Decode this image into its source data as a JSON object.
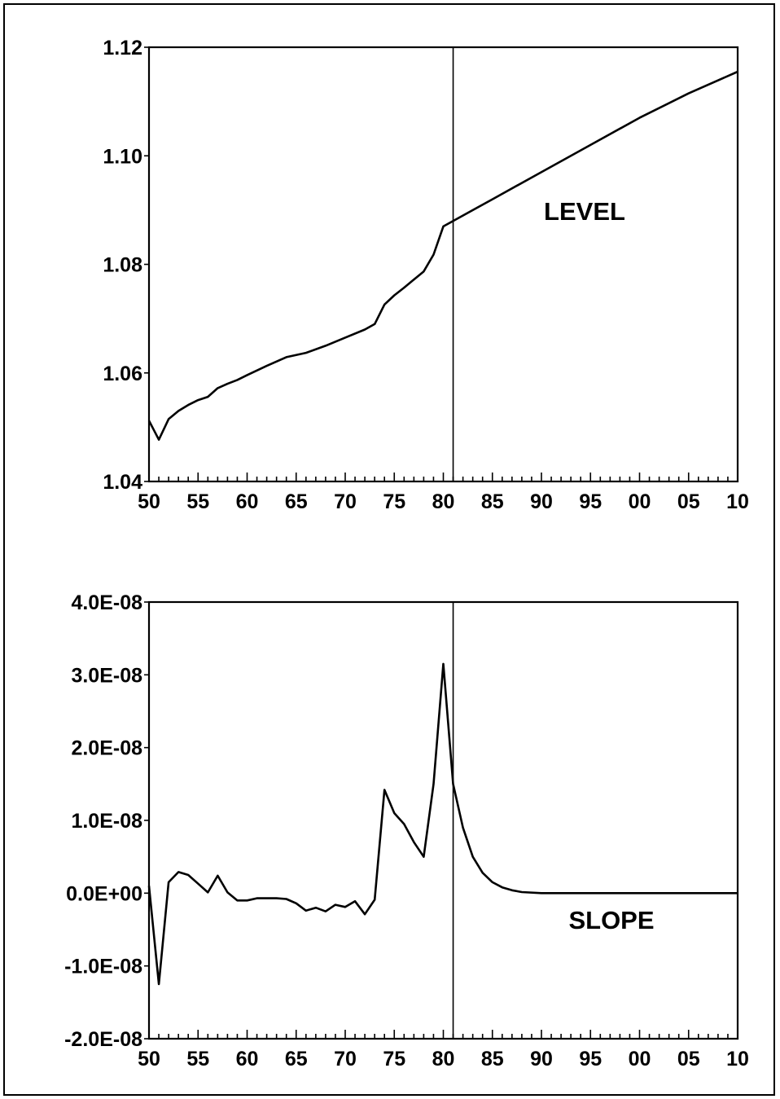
{
  "chart_data": [
    {
      "type": "line",
      "title": "",
      "xlabel": "",
      "ylabel": "",
      "panel_label": "LEVEL",
      "xlim": [
        1950,
        2010
      ],
      "ylim": [
        1.04,
        1.12
      ],
      "yticks": [
        1.04,
        1.06,
        1.08,
        1.1,
        1.12
      ],
      "ytick_labels": [
        "1.04",
        "1.06",
        "1.08",
        "1.10",
        "1.12"
      ],
      "xticks": [
        1950,
        1955,
        1960,
        1965,
        1970,
        1975,
        1980,
        1985,
        1990,
        1995,
        2000,
        2005,
        2010
      ],
      "xtick_labels": [
        "50",
        "55",
        "60",
        "65",
        "70",
        "75",
        "80",
        "85",
        "90",
        "95",
        "00",
        "05",
        "10"
      ],
      "vertical_line_x": 1981,
      "grid": false,
      "series": [
        {
          "x": [
            1950,
            1951,
            1952,
            1953,
            1954,
            1955,
            1956,
            1957,
            1958,
            1959,
            1960,
            1962,
            1964,
            1966,
            1968,
            1970,
            1972,
            1973,
            1974,
            1975,
            1976,
            1978,
            1979,
            1980,
            1981,
            1985,
            1990,
            1995,
            2000,
            2005,
            2010
          ],
          "values": [
            1.0512,
            1.0477,
            1.0515,
            1.053,
            1.0541,
            1.055,
            1.0556,
            1.0572,
            1.058,
            1.0587,
            1.0596,
            1.0613,
            1.0629,
            1.0637,
            1.065,
            1.0665,
            1.068,
            1.069,
            1.0726,
            1.0743,
            1.0757,
            1.0787,
            1.0818,
            1.087,
            1.088,
            1.092,
            1.097,
            1.102,
            1.107,
            1.1115,
            1.1155
          ]
        }
      ]
    },
    {
      "type": "line",
      "title": "",
      "xlabel": "",
      "ylabel": "",
      "panel_label": "SLOPE",
      "xlim": [
        1950,
        2010
      ],
      "ylim": [
        -2e-08,
        4e-08
      ],
      "yticks": [
        -2e-08,
        -1e-08,
        0,
        1e-08,
        2e-08,
        3e-08,
        4e-08
      ],
      "ytick_labels": [
        "-2.0E-08",
        "-1.0E-08",
        "0.0E+00",
        "1.0E-08",
        "2.0E-08",
        "3.0E-08",
        "4.0E-08"
      ],
      "xticks": [
        1950,
        1955,
        1960,
        1965,
        1970,
        1975,
        1980,
        1985,
        1990,
        1995,
        2000,
        2005,
        2010
      ],
      "xtick_labels": [
        "50",
        "55",
        "60",
        "65",
        "70",
        "75",
        "80",
        "85",
        "90",
        "95",
        "00",
        "05",
        "10"
      ],
      "vertical_line_x": 1981,
      "grid": false,
      "series": [
        {
          "x": [
            1950,
            1951,
            1952,
            1953,
            1954,
            1955,
            1956,
            1957,
            1958,
            1959,
            1960,
            1961,
            1962,
            1963,
            1964,
            1965,
            1966,
            1967,
            1968,
            1969,
            1970,
            1971,
            1972,
            1973,
            1974,
            1975,
            1976,
            1977,
            1978,
            1979,
            1980,
            1981,
            1982,
            1983,
            1984,
            1985,
            1986,
            1987,
            1988,
            1990,
            1995,
            2000,
            2005,
            2010
          ],
          "values": [
            1e-09,
            -1.25e-08,
            1.5e-09,
            2.9e-09,
            2.5e-09,
            1.3e-09,
            1e-10,
            2.4e-09,
            1e-10,
            -1e-09,
            -1e-09,
            -7e-10,
            -7e-10,
            -7e-10,
            -8e-10,
            -1.4e-09,
            -2.4e-09,
            -2e-09,
            -2.5e-09,
            -1.6e-09,
            -1.9e-09,
            -1.1e-09,
            -2.9e-09,
            -9e-10,
            1.42e-08,
            1.1e-08,
            9.5e-09,
            7e-09,
            5e-09,
            1.5e-08,
            3.15e-08,
            1.5e-08,
            9e-09,
            5e-09,
            2.8e-09,
            1.5e-09,
            8e-10,
            4e-10,
            1.5e-10,
            0,
            0,
            0,
            0,
            0
          ]
        }
      ]
    }
  ]
}
